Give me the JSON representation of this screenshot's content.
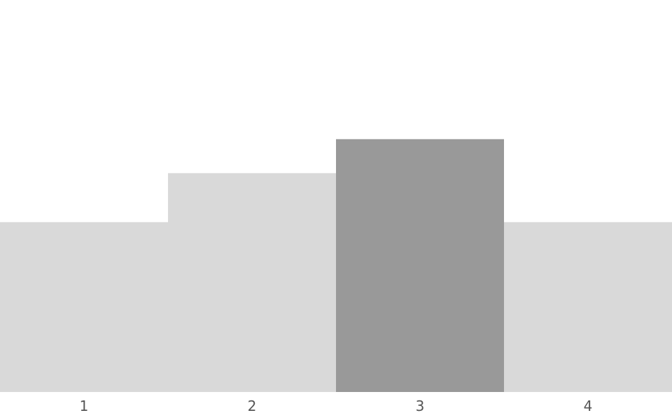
{
  "chart_data": {
    "type": "bar",
    "categories": [
      "1",
      "2",
      "3",
      "4"
    ],
    "values": [
      2.6,
      3.35,
      3.87,
      2.6
    ],
    "ylim": [
      0,
      6
    ],
    "title": "",
    "xlabel": "",
    "ylabel": "",
    "grid": false,
    "highlight_index": 2,
    "colors": {
      "bar": "#d9d9d9",
      "highlight": "#999999",
      "tick_label": "#555555"
    }
  }
}
